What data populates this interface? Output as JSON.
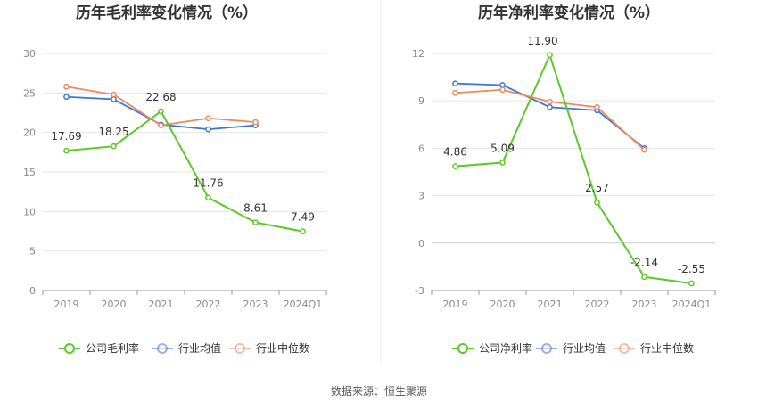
{
  "colors": {
    "company": "#5cc928",
    "avg": "#3c78d8",
    "median": "#ee8a60",
    "grid": "#e6e6e6",
    "axis": "#999999"
  },
  "source": "数据来源：恒生聚源",
  "chart_data": [
    {
      "type": "line",
      "title": "历年毛利率变化情况（%）",
      "categories": [
        "2019",
        "2020",
        "2021",
        "2022",
        "2023",
        "2024Q1"
      ],
      "ylim": [
        0,
        30
      ],
      "yticks": [
        "0",
        "5",
        "10",
        "15",
        "20",
        "25",
        "30"
      ],
      "grid": true,
      "legend_position": "bottom",
      "series": [
        {
          "name": "公司毛利率",
          "values": [
            17.69,
            18.25,
            22.68,
            11.76,
            8.61,
            7.49
          ],
          "labels": [
            "17.69",
            "18.25",
            "22.68",
            "11.76",
            "8.61",
            "7.49"
          ],
          "color": "#5cc928"
        },
        {
          "name": "行业均值",
          "values": [
            24.5,
            24.2,
            21.0,
            20.4,
            20.9,
            null
          ],
          "color": "#3c78d8"
        },
        {
          "name": "行业中位数",
          "values": [
            25.8,
            24.8,
            20.9,
            21.8,
            21.3,
            null
          ],
          "color": "#ee8a60"
        }
      ]
    },
    {
      "type": "line",
      "title": "历年净利率变化情况（%）",
      "categories": [
        "2019",
        "2020",
        "2021",
        "2022",
        "2023",
        "2024Q1"
      ],
      "ylim": [
        -3,
        12
      ],
      "yticks": [
        "-3",
        "0",
        "3",
        "6",
        "9",
        "12"
      ],
      "grid": true,
      "legend_position": "bottom",
      "series": [
        {
          "name": "公司净利率",
          "values": [
            4.86,
            5.09,
            11.9,
            2.57,
            -2.14,
            -2.55
          ],
          "labels": [
            "4.86",
            "5.09",
            "11.90",
            "2.57",
            "-2.14",
            "-2.55"
          ],
          "color": "#5cc928"
        },
        {
          "name": "行业均值",
          "values": [
            10.1,
            10.0,
            8.6,
            8.4,
            6.0,
            null
          ],
          "color": "#3c78d8"
        },
        {
          "name": "行业中位数",
          "values": [
            9.5,
            9.7,
            8.95,
            8.6,
            5.9,
            null
          ],
          "color": "#ee8a60"
        }
      ]
    }
  ]
}
